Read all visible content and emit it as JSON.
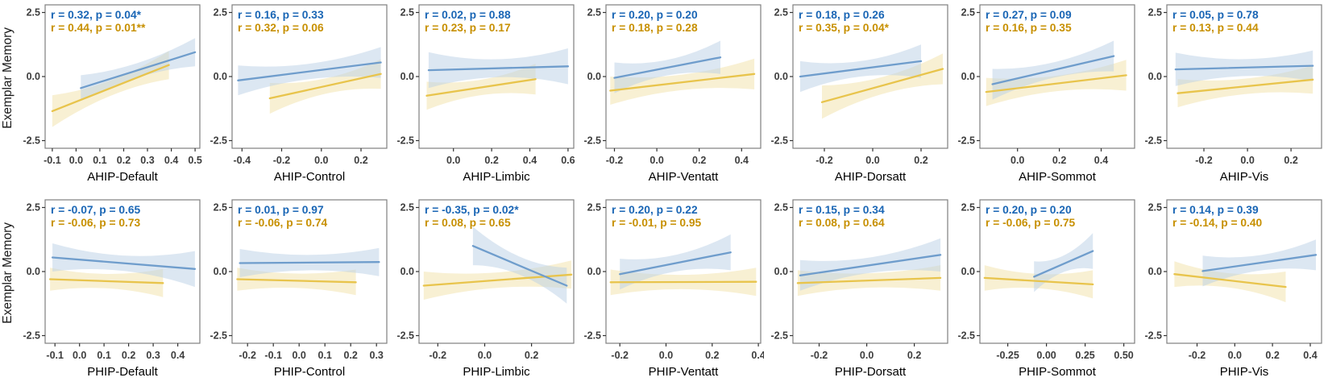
{
  "figure": {
    "ylabel": "Exemplar Memory",
    "ylim": [
      -2.8,
      2.8
    ],
    "yticks": [
      2.5,
      0.0,
      -2.5
    ],
    "ytick_labels": [
      "2.5",
      "0.0",
      "-2.5"
    ],
    "colors": {
      "blue_line": "#6f9dcc",
      "blue_band": "#b9cfe5",
      "gold_line": "#e8c44c",
      "gold_band": "#f2e4ae",
      "stats_blue": "#1a66b5",
      "stats_gold": "#c79002",
      "panel_border": "#7f7f7f",
      "tick_mark": "#333333",
      "tick_label": "#3d3d3d",
      "axis_title": "#000000"
    }
  },
  "chart_data": [
    {
      "type": "line",
      "row": 0,
      "xlabel": "AHIP-Default",
      "ylabel": "Exemplar Memory",
      "xlim": [
        -0.13,
        0.52
      ],
      "xticks": [
        -0.1,
        0.0,
        0.1,
        0.2,
        0.3,
        0.4,
        0.5
      ],
      "xtick_labels": [
        "-0.1",
        "0.0",
        "0.1",
        "0.2",
        "0.3",
        "0.4",
        "0.5"
      ],
      "annotations": [
        {
          "series": "blue",
          "text": "r = 0.32, p = 0.04*"
        },
        {
          "series": "gold",
          "text": "r = 0.44, p = 0.01**"
        }
      ],
      "series": [
        {
          "name": "blue",
          "x": [
            0.02,
            0.5
          ],
          "y": [
            -0.45,
            0.95
          ],
          "band": [
            0.5,
            0.28,
            0.55
          ]
        },
        {
          "name": "gold",
          "x": [
            -0.1,
            0.39
          ],
          "y": [
            -1.35,
            0.45
          ],
          "band": [
            0.62,
            0.3,
            0.55
          ]
        }
      ]
    },
    {
      "type": "line",
      "row": 0,
      "xlabel": "AHIP-Control",
      "ylabel": "Exemplar Memory",
      "xlim": [
        -0.45,
        0.33
      ],
      "xticks": [
        -0.4,
        -0.2,
        0.0,
        0.2
      ],
      "xtick_labels": [
        "-0.4",
        "-0.2",
        "0.0",
        "0.2"
      ],
      "annotations": [
        {
          "series": "blue",
          "text": "r = 0.16, p = 0.33"
        },
        {
          "series": "gold",
          "text": "r = 0.32, p = 0.06"
        }
      ],
      "series": [
        {
          "name": "blue",
          "x": [
            -0.42,
            0.3
          ],
          "y": [
            -0.15,
            0.55
          ],
          "band": [
            0.58,
            0.3,
            0.6
          ]
        },
        {
          "name": "gold",
          "x": [
            -0.26,
            0.3
          ],
          "y": [
            -0.85,
            0.1
          ],
          "band": [
            0.6,
            0.3,
            0.58
          ]
        }
      ]
    },
    {
      "type": "line",
      "row": 0,
      "xlabel": "AHIP-Limbic",
      "ylabel": "Exemplar Memory",
      "xlim": [
        -0.18,
        0.63
      ],
      "xticks": [
        0.0,
        0.2,
        0.4,
        0.6
      ],
      "xtick_labels": [
        "0.0",
        "0.2",
        "0.4",
        "0.6"
      ],
      "annotations": [
        {
          "series": "blue",
          "text": "r = 0.02, p = 0.88"
        },
        {
          "series": "gold",
          "text": "r = 0.23, p = 0.17"
        }
      ],
      "series": [
        {
          "name": "blue",
          "x": [
            -0.13,
            0.6
          ],
          "y": [
            0.25,
            0.4
          ],
          "band": [
            0.7,
            0.35,
            0.7
          ]
        },
        {
          "name": "gold",
          "x": [
            -0.14,
            0.43
          ],
          "y": [
            -0.75,
            -0.1
          ],
          "band": [
            0.55,
            0.3,
            0.6
          ]
        }
      ]
    },
    {
      "type": "line",
      "row": 0,
      "xlabel": "AHIP-Ventatt",
      "ylabel": "Exemplar Memory",
      "xlim": [
        -0.24,
        0.49
      ],
      "xticks": [
        -0.2,
        0.0,
        0.2,
        0.4
      ],
      "xtick_labels": [
        "-0.2",
        "0.0",
        "0.2",
        "0.4"
      ],
      "annotations": [
        {
          "series": "blue",
          "text": "r = 0.20, p = 0.20"
        },
        {
          "series": "gold",
          "text": "r = 0.18, p = 0.28"
        }
      ],
      "series": [
        {
          "name": "blue",
          "x": [
            -0.2,
            0.3
          ],
          "y": [
            -0.05,
            0.75
          ],
          "band": [
            0.6,
            0.3,
            0.65
          ]
        },
        {
          "name": "gold",
          "x": [
            -0.22,
            0.46
          ],
          "y": [
            -0.55,
            0.1
          ],
          "band": [
            0.55,
            0.3,
            0.6
          ]
        }
      ]
    },
    {
      "type": "line",
      "row": 0,
      "xlabel": "AHIP-Dorsatt",
      "ylabel": "Exemplar Memory",
      "xlim": [
        -0.33,
        0.31
      ],
      "xticks": [
        -0.2,
        0.0,
        0.2
      ],
      "xtick_labels": [
        "-0.2",
        "0.0",
        "0.2"
      ],
      "annotations": [
        {
          "series": "blue",
          "text": "r = 0.18, p = 0.26"
        },
        {
          "series": "gold",
          "text": "r = 0.35, p = 0.04*"
        }
      ],
      "series": [
        {
          "name": "blue",
          "x": [
            -0.3,
            0.2
          ],
          "y": [
            0.0,
            0.6
          ],
          "band": [
            0.6,
            0.3,
            0.65
          ]
        },
        {
          "name": "gold",
          "x": [
            -0.21,
            0.29
          ],
          "y": [
            -1.0,
            0.3
          ],
          "band": [
            0.65,
            0.33,
            0.6
          ]
        }
      ]
    },
    {
      "type": "line",
      "row": 0,
      "xlabel": "AHIP-Sommot",
      "ylabel": "Exemplar Memory",
      "xlim": [
        -0.18,
        0.56
      ],
      "xticks": [
        0.0,
        0.2,
        0.4
      ],
      "xtick_labels": [
        "0.0",
        "0.2",
        "0.4"
      ],
      "annotations": [
        {
          "series": "blue",
          "text": "r = 0.27, p = 0.09"
        },
        {
          "series": "gold",
          "text": "r = 0.16, p = 0.35"
        }
      ],
      "series": [
        {
          "name": "blue",
          "x": [
            -0.12,
            0.46
          ],
          "y": [
            -0.3,
            0.8
          ],
          "band": [
            0.6,
            0.3,
            0.6
          ]
        },
        {
          "name": "gold",
          "x": [
            -0.15,
            0.52
          ],
          "y": [
            -0.6,
            0.05
          ],
          "band": [
            0.55,
            0.3,
            0.6
          ]
        }
      ]
    },
    {
      "type": "line",
      "row": 0,
      "xlabel": "AHIP-Vis",
      "ylabel": "Exemplar Memory",
      "xlim": [
        -0.37,
        0.34
      ],
      "xticks": [
        -0.2,
        0.0,
        0.2
      ],
      "xtick_labels": [
        "-0.2",
        "0.0",
        "0.2"
      ],
      "annotations": [
        {
          "series": "blue",
          "text": "r = 0.05, p = 0.78"
        },
        {
          "series": "gold",
          "text": "r = 0.13, p = 0.44"
        }
      ],
      "series": [
        {
          "name": "blue",
          "x": [
            -0.33,
            0.3
          ],
          "y": [
            0.28,
            0.42
          ],
          "band": [
            0.65,
            0.33,
            0.6
          ]
        },
        {
          "name": "gold",
          "x": [
            -0.32,
            0.3
          ],
          "y": [
            -0.65,
            -0.12
          ],
          "band": [
            0.55,
            0.3,
            0.55
          ]
        }
      ]
    },
    {
      "type": "line",
      "row": 1,
      "xlabel": "PHIP-Default",
      "ylabel": "Exemplar Memory",
      "xlim": [
        -0.14,
        0.49
      ],
      "xticks": [
        -0.1,
        0.0,
        0.1,
        0.2,
        0.3,
        0.4
      ],
      "xtick_labels": [
        "-0.1",
        "0.0",
        "0.1",
        "0.2",
        "0.3",
        "0.4"
      ],
      "annotations": [
        {
          "series": "blue",
          "text": "r = -0.07, p = 0.65"
        },
        {
          "series": "gold",
          "text": "r = -0.06, p = 0.73"
        }
      ],
      "series": [
        {
          "name": "blue",
          "x": [
            -0.11,
            0.47
          ],
          "y": [
            0.55,
            0.1
          ],
          "band": [
            0.55,
            0.3,
            0.7
          ]
        },
        {
          "name": "gold",
          "x": [
            -0.12,
            0.34
          ],
          "y": [
            -0.3,
            -0.45
          ],
          "band": [
            0.45,
            0.28,
            0.55
          ]
        }
      ]
    },
    {
      "type": "line",
      "row": 1,
      "xlabel": "PHIP-Control",
      "ylabel": "Exemplar Memory",
      "xlim": [
        -0.26,
        0.34
      ],
      "xticks": [
        -0.2,
        -0.1,
        0.0,
        0.1,
        0.2,
        0.3
      ],
      "xtick_labels": [
        "-0.2",
        "-0.1",
        "0.0",
        "0.1",
        "0.2",
        "0.3"
      ],
      "annotations": [
        {
          "series": "blue",
          "text": "r = 0.01, p = 0.97"
        },
        {
          "series": "gold",
          "text": "r = -0.06, p = 0.74"
        }
      ],
      "series": [
        {
          "name": "blue",
          "x": [
            -0.23,
            0.31
          ],
          "y": [
            0.33,
            0.37
          ],
          "band": [
            0.55,
            0.3,
            0.55
          ]
        },
        {
          "name": "gold",
          "x": [
            -0.24,
            0.22
          ],
          "y": [
            -0.3,
            -0.42
          ],
          "band": [
            0.45,
            0.28,
            0.5
          ]
        }
      ]
    },
    {
      "type": "line",
      "row": 1,
      "xlabel": "PHIP-Limbic",
      "ylabel": "Exemplar Memory",
      "xlim": [
        -0.28,
        0.38
      ],
      "xticks": [
        -0.2,
        0.0,
        0.2
      ],
      "xtick_labels": [
        "-0.2",
        "0.0",
        "0.2"
      ],
      "annotations": [
        {
          "series": "blue",
          "text": "r = -0.35, p = 0.02*"
        },
        {
          "series": "gold",
          "text": "r = 0.08, p = 0.65"
        }
      ],
      "series": [
        {
          "name": "blue",
          "x": [
            -0.05,
            0.35
          ],
          "y": [
            1.0,
            -0.55
          ],
          "band": [
            0.75,
            0.35,
            0.7
          ]
        },
        {
          "name": "gold",
          "x": [
            -0.26,
            0.37
          ],
          "y": [
            -0.55,
            -0.12
          ],
          "band": [
            0.55,
            0.3,
            0.55
          ]
        }
      ]
    },
    {
      "type": "line",
      "row": 1,
      "xlabel": "PHIP-Ventatt",
      "ylabel": "Exemplar Memory",
      "xlim": [
        -0.26,
        0.41
      ],
      "xticks": [
        -0.2,
        0.0,
        0.2,
        0.4
      ],
      "xtick_labels": [
        "-0.2",
        "0.0",
        "0.2",
        "0.4"
      ],
      "annotations": [
        {
          "series": "blue",
          "text": "r = 0.20, p = 0.22"
        },
        {
          "series": "gold",
          "text": "r = -0.01, p = 0.95"
        }
      ],
      "series": [
        {
          "name": "blue",
          "x": [
            -0.2,
            0.28
          ],
          "y": [
            -0.1,
            0.75
          ],
          "band": [
            0.6,
            0.32,
            0.7
          ]
        },
        {
          "name": "gold",
          "x": [
            -0.24,
            0.39
          ],
          "y": [
            -0.42,
            -0.4
          ],
          "band": [
            0.5,
            0.28,
            0.55
          ]
        }
      ]
    },
    {
      "type": "line",
      "row": 1,
      "xlabel": "PHIP-Dorsatt",
      "ylabel": "Exemplar Memory",
      "xlim": [
        -0.31,
        0.34
      ],
      "xticks": [
        -0.2,
        0.0,
        0.2
      ],
      "xtick_labels": [
        "-0.2",
        "0.0",
        "0.2"
      ],
      "annotations": [
        {
          "series": "blue",
          "text": "r = 0.15, p = 0.34"
        },
        {
          "series": "gold",
          "text": "r = 0.08, p = 0.64"
        }
      ],
      "series": [
        {
          "name": "blue",
          "x": [
            -0.28,
            0.31
          ],
          "y": [
            -0.15,
            0.65
          ],
          "band": [
            0.6,
            0.3,
            0.65
          ]
        },
        {
          "name": "gold",
          "x": [
            -0.29,
            0.31
          ],
          "y": [
            -0.45,
            -0.25
          ],
          "band": [
            0.5,
            0.28,
            0.5
          ]
        }
      ]
    },
    {
      "type": "line",
      "row": 1,
      "xlabel": "PHIP-Sommot",
      "ylabel": "Exemplar Memory",
      "xlim": [
        -0.43,
        0.57
      ],
      "xticks": [
        -0.25,
        0.0,
        0.25,
        0.5
      ],
      "xtick_labels": [
        "-0.25",
        "0.00",
        "0.25",
        "0.50"
      ],
      "annotations": [
        {
          "series": "blue",
          "text": "r = 0.20, p = 0.20"
        },
        {
          "series": "gold",
          "text": "r = -0.06, p = 0.75"
        }
      ],
      "series": [
        {
          "name": "blue",
          "x": [
            -0.08,
            0.3
          ],
          "y": [
            -0.2,
            0.8
          ],
          "band": [
            0.6,
            0.32,
            0.7
          ]
        },
        {
          "name": "gold",
          "x": [
            -0.4,
            0.3
          ],
          "y": [
            -0.25,
            -0.5
          ],
          "band": [
            0.5,
            0.28,
            0.55
          ]
        }
      ]
    },
    {
      "type": "line",
      "row": 1,
      "xlabel": "PHIP-Vis",
      "ylabel": "Exemplar Memory",
      "xlim": [
        -0.36,
        0.46
      ],
      "xticks": [
        -0.2,
        0.0,
        0.2,
        0.4
      ],
      "xtick_labels": [
        "-0.2",
        "0.0",
        "0.2",
        "0.4"
      ],
      "annotations": [
        {
          "series": "blue",
          "text": "r = 0.14, p = 0.39"
        },
        {
          "series": "gold",
          "text": "r = -0.14, p = 0.40"
        }
      ],
      "series": [
        {
          "name": "blue",
          "x": [
            -0.17,
            0.43
          ],
          "y": [
            0.02,
            0.65
          ],
          "band": [
            0.6,
            0.3,
            0.6
          ]
        },
        {
          "name": "gold",
          "x": [
            -0.32,
            0.27
          ],
          "y": [
            -0.1,
            -0.6
          ],
          "band": [
            0.5,
            0.28,
            0.6
          ]
        }
      ]
    }
  ]
}
